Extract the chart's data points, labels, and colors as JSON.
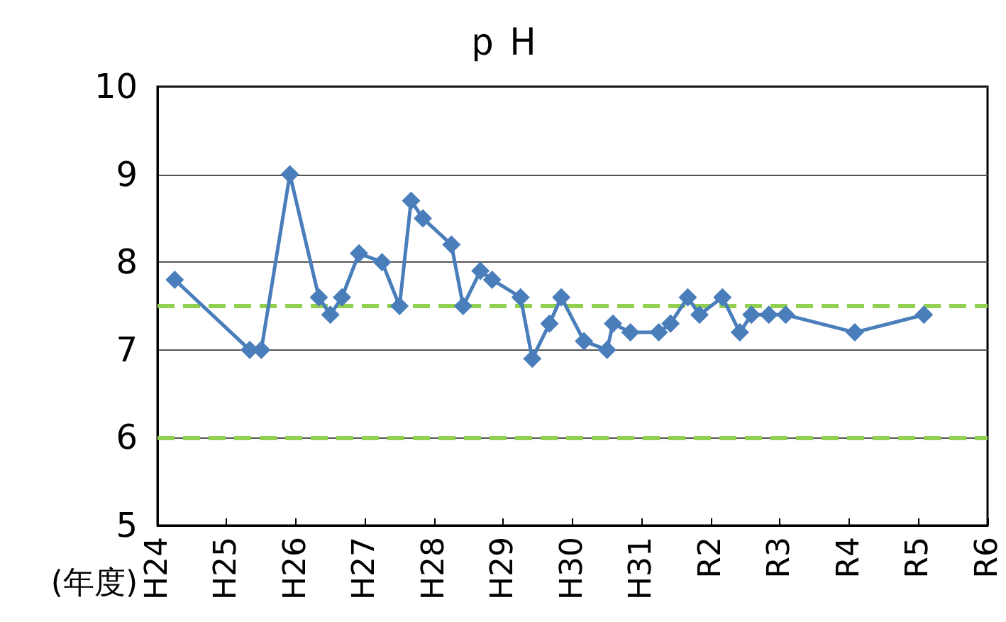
{
  "chart_data": {
    "type": "line",
    "title": "ｐＨ",
    "xlabel": "(年度)",
    "x": [
      "2012-07",
      "2013-08",
      "2013-10",
      "2014-03",
      "2014-08",
      "2014-10",
      "2014-12",
      "2015-03",
      "2015-07",
      "2015-10",
      "2015-12",
      "2016-02",
      "2016-07",
      "2016-09",
      "2016-12",
      "2017-02",
      "2017-07",
      "2017-09",
      "2017-12",
      "2018-02",
      "2018-06",
      "2018-10",
      "2018-11",
      "2019-02",
      "2019-07",
      "2019-09",
      "2019-12",
      "2020-02",
      "2020-06",
      "2020-09",
      "2020-11",
      "2021-02",
      "2021-05",
      "2022-05",
      "2023-05"
    ],
    "series": [
      {
        "color": "#4a7ebb",
        "values": [
          7.8,
          7.0,
          7.0,
          9.0,
          7.6,
          7.4,
          7.6,
          8.1,
          8.0,
          7.5,
          8.7,
          8.5,
          8.2,
          7.5,
          7.9,
          7.8,
          7.6,
          6.9,
          7.3,
          7.6,
          7.1,
          7.0,
          7.3,
          7.2,
          7.2,
          7.3,
          7.6,
          7.4,
          7.6,
          7.2,
          7.4,
          7.4,
          7.4,
          7.2,
          7.4
        ]
      }
    ],
    "xlim": [
      "2012-04",
      "2024-04"
    ],
    "xticks": [
      {
        "value": "2012-04",
        "label": "H24"
      },
      {
        "value": "2013-04",
        "label": "H25"
      },
      {
        "value": "2014-04",
        "label": "H26"
      },
      {
        "value": "2015-04",
        "label": "H27"
      },
      {
        "value": "2016-04",
        "label": "H28"
      },
      {
        "value": "2017-04",
        "label": "H29"
      },
      {
        "value": "2018-04",
        "label": "H30"
      },
      {
        "value": "2019-04",
        "label": "H31"
      },
      {
        "value": "2020-04",
        "label": "R2"
      },
      {
        "value": "2021-04",
        "label": "R3"
      },
      {
        "value": "2022-04",
        "label": "R4"
      },
      {
        "value": "2023-04",
        "label": "R5"
      },
      {
        "value": "2024-04",
        "label": "R6"
      }
    ],
    "ylim": [
      5,
      10
    ],
    "yticks": [
      5,
      6,
      7,
      8,
      9,
      10
    ],
    "ref_lines": [
      {
        "axis": "y",
        "value": 7.5,
        "color": "#92d050",
        "line_style": "dashed"
      },
      {
        "axis": "y",
        "value": 6,
        "color": "#92d050",
        "line_style": "dashed"
      }
    ],
    "grid": "y",
    "marker": "diamond",
    "line_style": "solid"
  }
}
